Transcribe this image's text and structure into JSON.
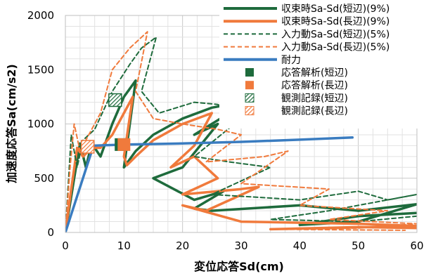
{
  "chart_data": {
    "type": "line",
    "title": "",
    "xlabel": "変位応答Sd(cm)",
    "ylabel": "加速度応答Sa(cm/s2)",
    "xlim": [
      0,
      60
    ],
    "ylim": [
      0,
      2000
    ],
    "xticks": [
      "0",
      "10",
      "20",
      "30",
      "40",
      "50",
      "60"
    ],
    "yticks": [
      "0",
      "500",
      "1000",
      "1500",
      "2000"
    ],
    "grid": true,
    "legend_position": "top-right",
    "colors": {
      "short_side": "#1e6b3c",
      "long_side": "#f07a3c",
      "capacity": "#3a7cc0"
    },
    "series": [
      {
        "name": "収束時Sa-Sd(短辺)(9%)",
        "style": "solid-thick",
        "color": "#1e6b3c",
        "points": [
          [
            0,
            0
          ],
          [
            1.5,
            500
          ],
          [
            2.5,
            820
          ],
          [
            3.5,
            600
          ],
          [
            4.5,
            820
          ],
          [
            6,
            700
          ],
          [
            8,
            1000
          ],
          [
            10,
            1250
          ],
          [
            12,
            1400
          ],
          [
            10.5,
            800
          ],
          [
            10,
            600
          ],
          [
            12,
            750
          ],
          [
            15,
            900
          ],
          [
            20,
            1050
          ],
          [
            25,
            1150
          ],
          [
            30,
            1200
          ],
          [
            28,
            1100
          ],
          [
            22,
            900
          ],
          [
            26,
            1000
          ],
          [
            20,
            600
          ],
          [
            15,
            500
          ],
          [
            22,
            300
          ],
          [
            27,
            380
          ],
          [
            22,
            220
          ],
          [
            25,
            200
          ],
          [
            40,
            250
          ],
          [
            50,
            200
          ],
          [
            60,
            260
          ],
          [
            50,
            100
          ],
          [
            40,
            70
          ],
          [
            50,
            150
          ],
          [
            60,
            180
          ]
        ]
      },
      {
        "name": "収束時Sa-Sd(長辺)(9%)",
        "style": "solid-thick",
        "color": "#f07a3c",
        "points": [
          [
            0,
            0
          ],
          [
            1,
            400
          ],
          [
            2,
            780
          ],
          [
            3,
            700
          ],
          [
            4.5,
            780
          ],
          [
            6,
            780
          ],
          [
            8,
            900
          ],
          [
            10,
            1100
          ],
          [
            11.5,
            1250
          ],
          [
            10,
            700
          ],
          [
            10.5,
            620
          ],
          [
            12,
            700
          ],
          [
            15,
            850
          ],
          [
            20,
            1000
          ],
          [
            25,
            1100
          ],
          [
            22,
            800
          ],
          [
            18,
            600
          ],
          [
            22,
            700
          ],
          [
            26,
            500
          ],
          [
            20,
            350
          ],
          [
            30,
            400
          ],
          [
            33,
            420
          ],
          [
            24,
            200
          ],
          [
            20,
            250
          ],
          [
            30,
            100
          ],
          [
            40,
            90
          ],
          [
            50,
            80
          ],
          [
            60,
            60
          ],
          [
            45,
            40
          ],
          [
            35,
            30
          ],
          [
            50,
            50
          ],
          [
            60,
            40
          ]
        ]
      },
      {
        "name": "入力動Sa-Sd(短辺)(5%)",
        "style": "dashed",
        "color": "#1e6b3c",
        "points": [
          [
            0,
            0
          ],
          [
            1,
            900
          ],
          [
            2,
            600
          ],
          [
            3,
            850
          ],
          [
            5,
            950
          ],
          [
            8,
            1300
          ],
          [
            11,
            1550
          ],
          [
            13,
            1700
          ],
          [
            15.5,
            1800
          ],
          [
            13,
            1300
          ],
          [
            16,
            1100
          ],
          [
            22,
            1200
          ],
          [
            26,
            1180
          ],
          [
            30,
            1050
          ],
          [
            22,
            700
          ],
          [
            28,
            650
          ],
          [
            35,
            600
          ],
          [
            25,
            350
          ],
          [
            40,
            300
          ],
          [
            50,
            380
          ],
          [
            55,
            300
          ],
          [
            60,
            350
          ],
          [
            45,
            200
          ],
          [
            35,
            120
          ],
          [
            50,
            100
          ],
          [
            60,
            150
          ]
        ]
      },
      {
        "name": "入力動Sa-Sd(長辺)(5%)",
        "style": "dashed",
        "color": "#f07a3c",
        "points": [
          [
            0,
            0
          ],
          [
            0.8,
            600
          ],
          [
            1.5,
            1000
          ],
          [
            2.5,
            750
          ],
          [
            4,
            900
          ],
          [
            6,
            1100
          ],
          [
            8,
            1500
          ],
          [
            11,
            1700
          ],
          [
            14,
            1850
          ],
          [
            12,
            1300
          ],
          [
            15,
            1050
          ],
          [
            20,
            1000
          ],
          [
            26,
            950
          ],
          [
            30,
            900
          ],
          [
            24,
            650
          ],
          [
            34,
            700
          ],
          [
            38,
            750
          ],
          [
            30,
            450
          ],
          [
            45,
            400
          ],
          [
            40,
            250
          ],
          [
            55,
            200
          ],
          [
            45,
            120
          ],
          [
            60,
            80
          ],
          [
            50,
            40
          ],
          [
            35,
            30
          ],
          [
            58,
            20
          ]
        ]
      },
      {
        "name": "耐力",
        "style": "solid-thick",
        "color": "#3a7cc0",
        "points": [
          [
            0,
            0
          ],
          [
            4.8,
            800
          ],
          [
            10,
            810
          ],
          [
            20,
            820
          ],
          [
            30,
            835
          ],
          [
            40,
            855
          ],
          [
            49,
            875
          ]
        ]
      }
    ],
    "markers": [
      {
        "name": "応答解析(短辺)",
        "color": "#1e6b3c",
        "pattern": "solid",
        "points": [
          [
            9.5,
            810
          ]
        ]
      },
      {
        "name": "応答解析(長辺)",
        "color": "#f07a3c",
        "pattern": "solid",
        "points": [
          [
            10,
            810
          ]
        ]
      },
      {
        "name": "観測記録(短辺)",
        "color": "#1e6b3c",
        "pattern": "hatched",
        "points": [
          [
            8.5,
            1220
          ]
        ]
      },
      {
        "name": "観測記録(長辺)",
        "color": "#f07a3c",
        "pattern": "hatched",
        "points": [
          [
            3.8,
            790
          ]
        ]
      }
    ]
  }
}
